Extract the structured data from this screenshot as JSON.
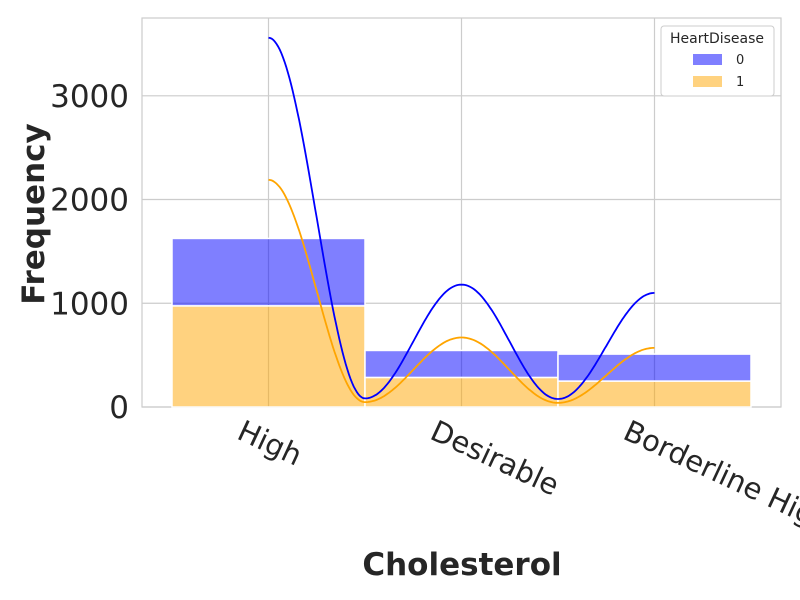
{
  "chart_data": {
    "type": "bar",
    "stacked": true,
    "title": "",
    "xlabel": "Cholesterol",
    "ylabel": "Frequency",
    "categories": [
      "High",
      "Desirable",
      "Borderline High"
    ],
    "ylim": [
      0,
      3750
    ],
    "yticks": [
      0,
      1000,
      2000,
      3000
    ],
    "grid": true,
    "legend": {
      "title": "HeartDisease",
      "position": "top-right"
    },
    "series": [
      {
        "name": "0",
        "values": [
          650,
          260,
          260
        ],
        "color": "#0000ff",
        "kde_peaks": [
          3560,
          1180,
          1100
        ]
      },
      {
        "name": "1",
        "values": [
          975,
          285,
          250
        ],
        "color": "#ffa500",
        "kde_peaks": [
          2190,
          670,
          570
        ]
      }
    ]
  }
}
